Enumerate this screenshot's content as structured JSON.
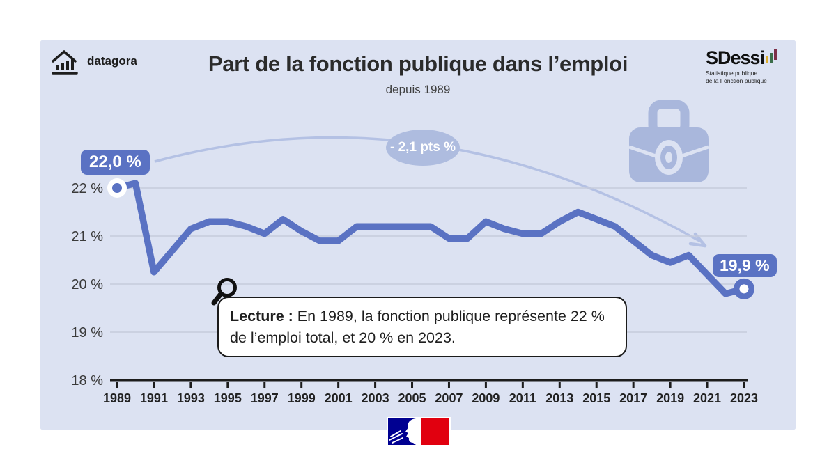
{
  "header": {
    "brand": "datagora",
    "title": "Part de la fonction publique dans l’emploi",
    "subtitle": "depuis 1989"
  },
  "sdessi": {
    "name": "SDessi",
    "tagline1": "Statistique publique",
    "tagline2": "de la Fonction publique"
  },
  "annotations": {
    "start_badge": "22,0 %",
    "end_badge": "19,9 %",
    "delta_label": "- 2,1 pts %"
  },
  "lecture": {
    "label": "Lecture :",
    "text": " En 1989, la fonction publique représente 22 % de l’emploi total, et 20 % en 2023."
  },
  "colors": {
    "card_background": "#dce2f2",
    "line": "#5a72c3",
    "light_accent": "#aebcdf",
    "axis": "#1c1c1c",
    "gridline": "#c5cbdb",
    "flag_blue": "#000091",
    "flag_red": "#e1000f"
  },
  "chart_data": {
    "type": "line",
    "title": "Part de la fonction publique dans l’emploi",
    "subtitle": "depuis 1989",
    "unit": "%",
    "x": [
      1989,
      1990,
      1991,
      1992,
      1993,
      1994,
      1995,
      1996,
      1997,
      1998,
      1999,
      2000,
      2001,
      2002,
      2003,
      2004,
      2005,
      2006,
      2007,
      2008,
      2009,
      2010,
      2011,
      2012,
      2013,
      2014,
      2015,
      2016,
      2017,
      2018,
      2019,
      2020,
      2021,
      2022,
      2023
    ],
    "values": [
      22.0,
      22.1,
      20.25,
      20.7,
      21.15,
      21.3,
      21.3,
      21.2,
      21.05,
      21.35,
      21.1,
      20.9,
      20.9,
      21.2,
      21.2,
      21.2,
      21.2,
      21.2,
      20.95,
      20.95,
      21.3,
      21.15,
      21.05,
      21.05,
      21.3,
      21.5,
      21.35,
      21.2,
      20.9,
      20.6,
      20.45,
      20.6,
      20.2,
      19.8,
      19.9
    ],
    "ylim": [
      18,
      22
    ],
    "yticks": [
      {
        "value": 22,
        "label": "22 %"
      },
      {
        "value": 21,
        "label": "21 %"
      },
      {
        "value": 20,
        "label": "20 %"
      },
      {
        "value": 19,
        "label": "19 %"
      },
      {
        "value": 18,
        "label": "18 %"
      }
    ],
    "xtick_years": [
      1989,
      1991,
      1993,
      1995,
      1997,
      1999,
      2001,
      2003,
      2005,
      2007,
      2009,
      2011,
      2013,
      2015,
      2017,
      2019,
      2021,
      2023
    ],
    "grid": true,
    "legend": "none",
    "first_point": {
      "year": 1989,
      "value": 22.0,
      "label": "22,0 %"
    },
    "last_point": {
      "year": 2023,
      "value": 19.9,
      "label": "19,9 %"
    },
    "delta_annotation": "- 2,1 pts %"
  }
}
